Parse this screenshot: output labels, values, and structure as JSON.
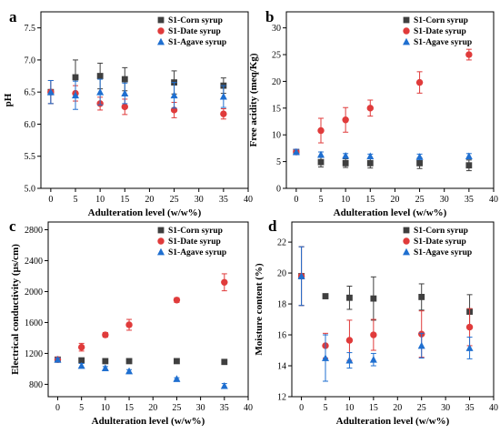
{
  "chart_data": [
    {
      "panel": "a",
      "type": "scatter",
      "xlabel": "Adulteration level (w/w%)",
      "ylabel": "pH",
      "xlim": [
        -2,
        40
      ],
      "ylim": [
        5.0,
        7.75
      ],
      "xticks": [
        0,
        5,
        10,
        15,
        20,
        25,
        30,
        35,
        40
      ],
      "yticks": [
        5.0,
        5.5,
        6.0,
        6.5,
        7.0,
        7.5
      ],
      "yfmt": 1,
      "legend_position": "top-right",
      "series": [
        {
          "name": "S1-Corn syrup",
          "marker": "square",
          "color": "#3f3f3f",
          "x": [
            0,
            5,
            10,
            15,
            25,
            35
          ],
          "y": [
            6.5,
            6.73,
            6.75,
            6.7,
            6.65,
            6.6
          ],
          "err": [
            0.18,
            0.27,
            0.2,
            0.18,
            0.18,
            0.12
          ]
        },
        {
          "name": "S1-Date syrup",
          "marker": "circle",
          "color": "#e03b3b",
          "x": [
            0,
            5,
            10,
            15,
            25,
            35
          ],
          "y": [
            6.5,
            6.48,
            6.32,
            6.27,
            6.22,
            6.16
          ],
          "err": [
            0.18,
            0.12,
            0.1,
            0.12,
            0.12,
            0.08
          ]
        },
        {
          "name": "S1-Agave syrup",
          "marker": "triangle",
          "color": "#1f6fd0",
          "x": [
            0,
            5,
            10,
            15,
            25,
            35
          ],
          "y": [
            6.5,
            6.45,
            6.5,
            6.48,
            6.45,
            6.43
          ],
          "err": [
            0.18,
            0.22,
            0.2,
            0.16,
            0.2,
            0.17
          ]
        }
      ]
    },
    {
      "panel": "b",
      "type": "scatter",
      "xlabel": "Adulteration level (w/w%)",
      "ylabel": "Free acidity (meq/Kg)",
      "xlim": [
        -2,
        40
      ],
      "ylim": [
        0,
        33
      ],
      "xticks": [
        0,
        5,
        10,
        15,
        20,
        25,
        30,
        35,
        40
      ],
      "yticks": [
        0,
        5,
        10,
        15,
        20,
        25,
        30
      ],
      "yfmt": 0,
      "legend_position": "top-left",
      "series": [
        {
          "name": "S1-Corn syrup",
          "marker": "square",
          "color": "#3f3f3f",
          "x": [
            0,
            5,
            10,
            15,
            25,
            35
          ],
          "y": [
            6.8,
            4.9,
            4.7,
            4.7,
            4.7,
            4.3
          ],
          "err": [
            0.5,
            0.9,
            0.8,
            0.9,
            1.0,
            1.0
          ]
        },
        {
          "name": "S1-Date syrup",
          "marker": "circle",
          "color": "#e03b3b",
          "x": [
            0,
            5,
            10,
            15,
            25,
            35
          ],
          "y": [
            6.8,
            10.8,
            12.8,
            15.0,
            19.8,
            25.0
          ],
          "err": [
            0.5,
            2.3,
            2.3,
            1.5,
            2.0,
            1.0
          ]
        },
        {
          "name": "S1-Agave syrup",
          "marker": "triangle",
          "color": "#1f6fd0",
          "x": [
            0,
            5,
            10,
            15,
            25,
            35
          ],
          "y": [
            6.8,
            6.3,
            6.1,
            6.0,
            5.9,
            6.0
          ],
          "err": [
            0.5,
            0.5,
            0.4,
            0.4,
            0.5,
            0.5
          ]
        }
      ]
    },
    {
      "panel": "c",
      "type": "scatter",
      "xlabel": "Adulteration level (w/w%)",
      "ylabel": "Electrical conductivity (µs/cm)",
      "xlim": [
        -2,
        40
      ],
      "ylim": [
        640,
        2900
      ],
      "xticks": [
        0,
        5,
        10,
        15,
        20,
        25,
        30,
        35,
        40
      ],
      "yticks": [
        800,
        1200,
        1600,
        2000,
        2400,
        2800
      ],
      "yfmt": 0,
      "legend_position": "top-right",
      "series": [
        {
          "name": "S1-Corn syrup",
          "marker": "square",
          "color": "#3f3f3f",
          "x": [
            0,
            5,
            10,
            15,
            25,
            35
          ],
          "y": [
            1120,
            1110,
            1100,
            1100,
            1100,
            1090
          ],
          "err": [
            20,
            20,
            15,
            15,
            15,
            15
          ]
        },
        {
          "name": "S1-Date syrup",
          "marker": "circle",
          "color": "#e03b3b",
          "x": [
            0,
            5,
            10,
            15,
            25,
            35
          ],
          "y": [
            1120,
            1280,
            1440,
            1570,
            1890,
            2120
          ],
          "err": [
            20,
            50,
            30,
            70,
            30,
            110
          ]
        },
        {
          "name": "S1-Agave syrup",
          "marker": "triangle",
          "color": "#1f6fd0",
          "x": [
            0,
            5,
            10,
            15,
            25,
            35
          ],
          "y": [
            1120,
            1040,
            1010,
            970,
            870,
            780
          ],
          "err": [
            20,
            30,
            20,
            20,
            15,
            30
          ]
        }
      ]
    },
    {
      "panel": "d",
      "type": "scatter",
      "xlabel": "Adulteration level (w/w%)",
      "ylabel": "Moisture content (%)",
      "xlim": [
        -2,
        40
      ],
      "ylim": [
        12,
        23.3
      ],
      "xticks": [
        0,
        5,
        10,
        15,
        20,
        25,
        30,
        35,
        40
      ],
      "yticks": [
        12,
        14,
        16,
        18,
        20,
        22
      ],
      "yfmt": 0,
      "legend_position": "top-right",
      "series": [
        {
          "name": "S1-Corn syrup",
          "marker": "square",
          "color": "#3f3f3f",
          "x": [
            0,
            5,
            10,
            15,
            25,
            35
          ],
          "y": [
            19.8,
            18.5,
            18.4,
            18.35,
            18.45,
            17.5
          ],
          "err": [
            1.9,
            0.1,
            0.75,
            1.4,
            0.85,
            1.1
          ]
        },
        {
          "name": "S1-Date syrup",
          "marker": "circle",
          "color": "#e03b3b",
          "x": [
            0,
            5,
            10,
            15,
            25,
            35
          ],
          "y": [
            19.8,
            15.3,
            15.65,
            16.0,
            16.05,
            16.5
          ],
          "err": [
            1.9,
            0.8,
            1.3,
            1.0,
            1.5,
            1.2
          ]
        },
        {
          "name": "S1-Agave syrup",
          "marker": "triangle",
          "color": "#1f6fd0",
          "x": [
            0,
            5,
            10,
            15,
            25,
            35
          ],
          "y": [
            19.8,
            14.5,
            14.35,
            14.4,
            15.3,
            15.15
          ],
          "err": [
            1.9,
            1.5,
            0.5,
            0.4,
            0.8,
            0.7
          ]
        }
      ]
    }
  ]
}
